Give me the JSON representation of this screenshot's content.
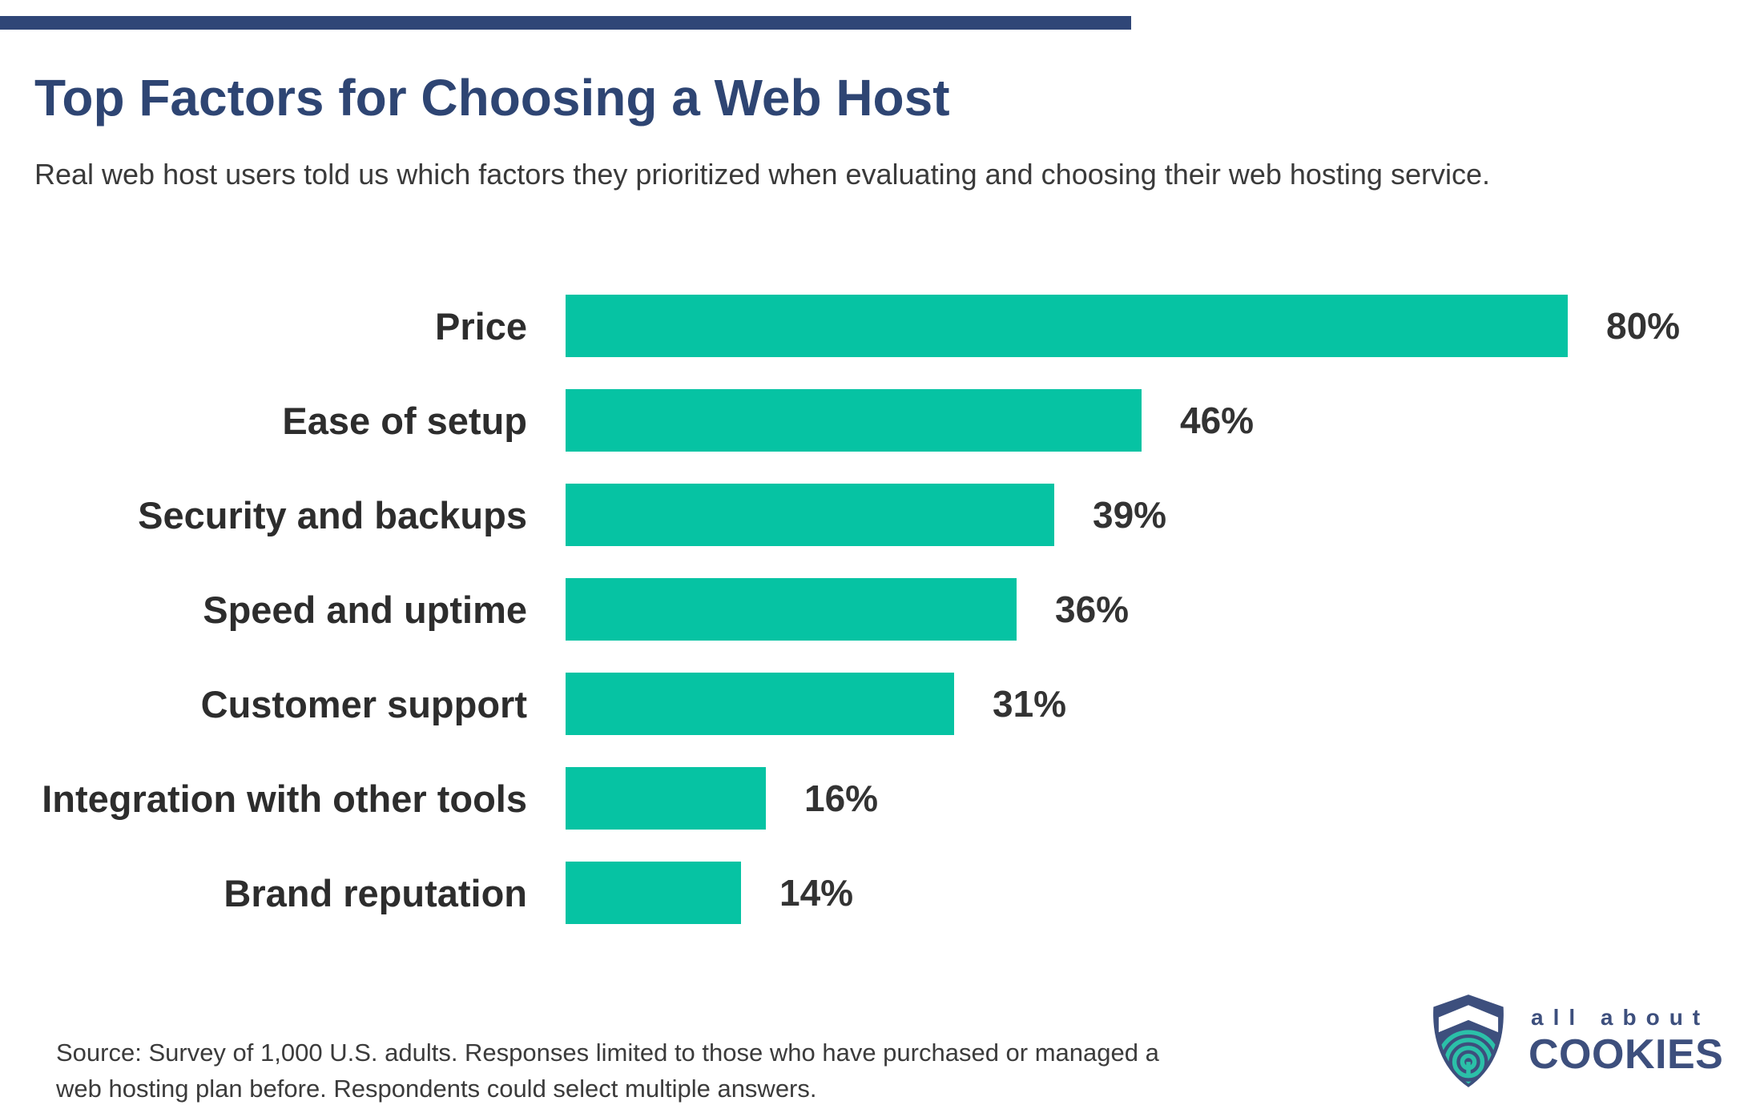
{
  "accent_bar": {
    "color": "#2F4677"
  },
  "header": {
    "title": "Top Factors for Choosing a Web Host",
    "title_color": "#2E4573",
    "subtitle": "Real web host users told us which factors they prioritized when evaluating and choosing their web hosting service."
  },
  "chart_data": {
    "type": "bar",
    "orientation": "horizontal",
    "title": "Top Factors for Choosing a Web Host",
    "categories": [
      "Price",
      "Ease of setup",
      "Security and backups",
      "Speed and uptime",
      "Customer support",
      "Integration with other tools",
      "Brand reputation"
    ],
    "values": [
      80,
      46,
      39,
      36,
      31,
      16,
      14
    ],
    "value_suffix": "%",
    "bar_color": "#06C3A3",
    "label_color": "#2D2D2D",
    "value_label_color": "#333333",
    "xlim": [
      0,
      80
    ],
    "grid": false,
    "axes_hidden": true,
    "value_labels": [
      "80%",
      "46%",
      "39%",
      "36%",
      "31%",
      "16%",
      "14%"
    ]
  },
  "footer": {
    "source": "Source: Survey of 1,000 U.S. adults. Responses limited to those who have purchased or managed a web hosting plan before. Respondents could select multiple answers."
  },
  "logo": {
    "line1": "all about",
    "line2": "COOKIES",
    "navy": "#3D4F7D",
    "teal": "#2BC0A8",
    "icon": "shield-fingerprint-icon"
  }
}
